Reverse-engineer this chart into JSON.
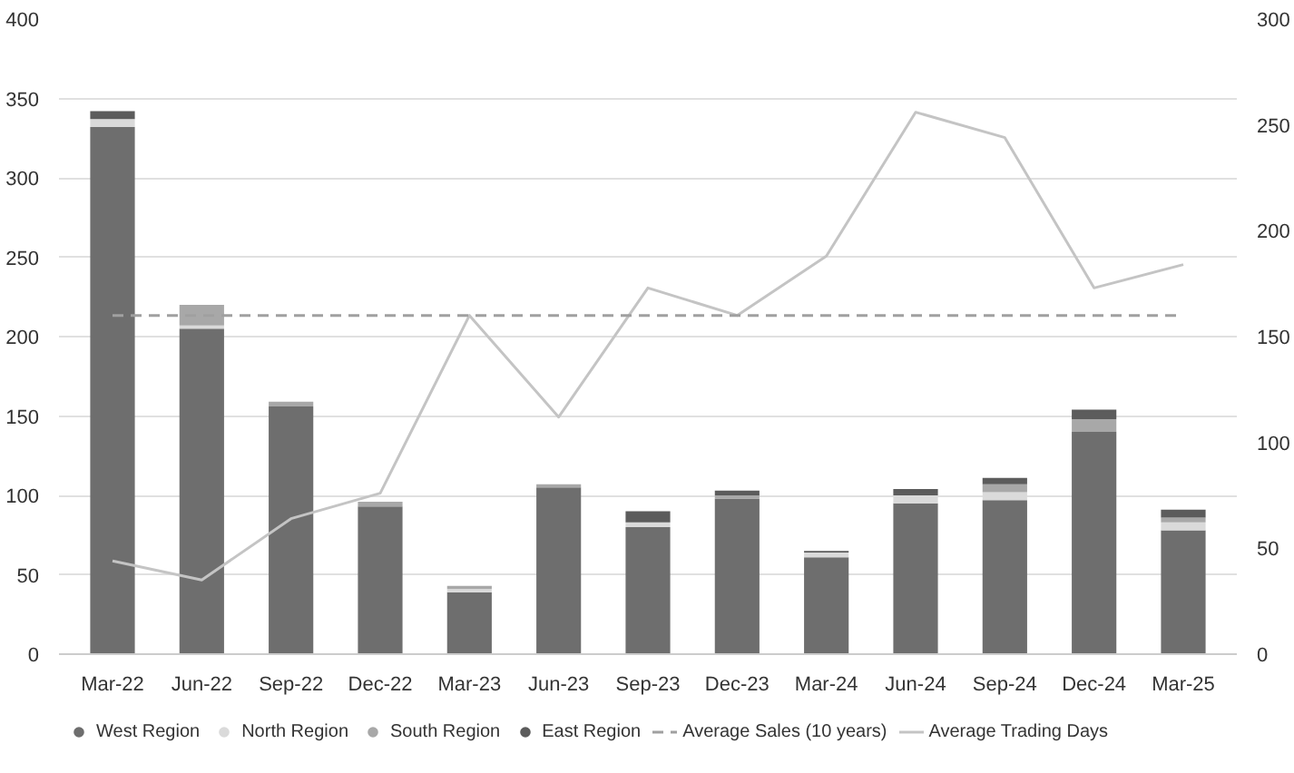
{
  "chart_data": {
    "type": "bar",
    "stacked": true,
    "categories": [
      "Mar-22",
      "Jun-22",
      "Sep-22",
      "Dec-22",
      "Mar-23",
      "Jun-23",
      "Sep-23",
      "Dec-23",
      "Mar-24",
      "Jun-24",
      "Sep-24",
      "Dec-24",
      "Mar-25"
    ],
    "series": [
      {
        "name": "West Region",
        "color": "#6e6e6e",
        "values": [
          332,
          205,
          156,
          93,
          39,
          105,
          80,
          98,
          61,
          95,
          97,
          140,
          78
        ]
      },
      {
        "name": "North Region",
        "color": "#dadada",
        "values": [
          5,
          2,
          null,
          0,
          2,
          0,
          3,
          0,
          3,
          5,
          5,
          0,
          5
        ]
      },
      {
        "name": "South Region",
        "color": "#a8a8a8",
        "values": [
          null,
          13,
          3,
          3,
          2,
          2,
          0,
          2,
          0,
          null,
          5,
          8,
          3
        ]
      },
      {
        "name": "East Region",
        "color": "#5c5c5c",
        "values": [
          5,
          0,
          0,
          0,
          0,
          0,
          7,
          3,
          1,
          4,
          4,
          6,
          5
        ]
      },
      {
        "name": "Average Trading Days",
        "type": "line",
        "axis": "y2",
        "color": "#c4c4c4",
        "values": [
          44,
          35,
          64,
          76,
          160,
          112,
          173,
          160,
          188,
          256,
          244,
          173,
          184
        ]
      }
    ],
    "ref_lines": [
      {
        "axis": "y2",
        "value": 160,
        "label": "Average Sales (10 years)",
        "color": "#a0a0a0",
        "line_style": "dashed"
      }
    ],
    "ylim": [
      0,
      400
    ],
    "yticks": [
      0,
      50,
      100,
      150,
      200,
      250,
      300,
      350,
      400
    ],
    "y2lim": [
      0,
      300
    ],
    "y2ticks": [
      0,
      50,
      100,
      150,
      200,
      250,
      300
    ],
    "grid": "y",
    "legend": "bottom"
  }
}
